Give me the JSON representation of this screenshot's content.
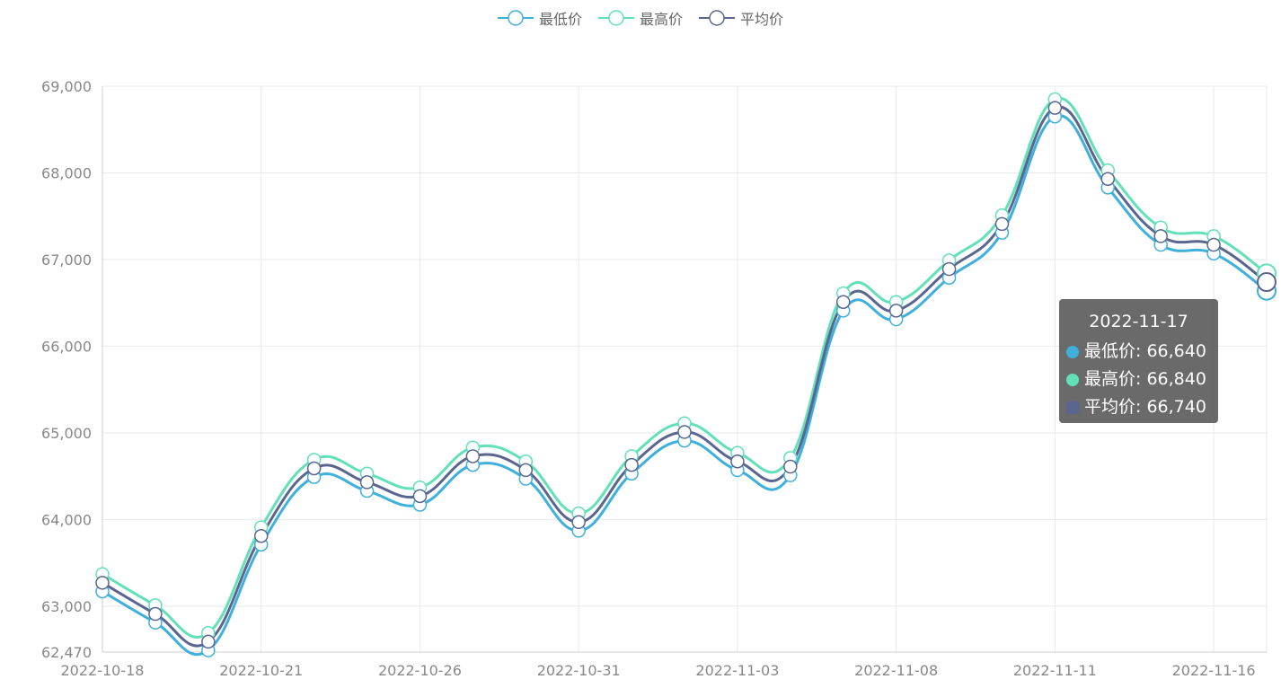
{
  "legend": [
    {
      "name": "最低价",
      "color": "#3fafdc"
    },
    {
      "name": "最高价",
      "color": "#62e0b8"
    },
    {
      "name": "平均价",
      "color": "#5b6690"
    }
  ],
  "tooltip": {
    "date": "2022-11-17",
    "rows": [
      {
        "label": "最低价: 66,640",
        "color": "#3fafdc"
      },
      {
        "label": "最高价: 66,840",
        "color": "#62e0b8"
      },
      {
        "label": "平均价: 66,740",
        "color": "#5b6690"
      }
    ]
  },
  "chart_data": {
    "type": "line",
    "x": [
      "2022-10-18",
      "2022-10-19",
      "2022-10-20",
      "2022-10-21",
      "2022-10-24",
      "2022-10-25",
      "2022-10-26",
      "2022-10-27",
      "2022-10-28",
      "2022-10-31",
      "2022-11-01",
      "2022-11-02",
      "2022-11-03",
      "2022-11-04",
      "2022-11-07",
      "2022-11-08",
      "2022-11-09",
      "2022-11-10",
      "2022-11-11",
      "2022-11-14",
      "2022-11-15",
      "2022-11-16",
      "2022-11-17"
    ],
    "x_tick_labels": [
      "2022-10-18",
      "2022-10-21",
      "2022-10-26",
      "2022-10-31",
      "2022-11-03",
      "2022-11-08",
      "2022-11-11",
      "2022-11-16"
    ],
    "series": [
      {
        "name": "最低价",
        "color": "#3fafdc",
        "values": [
          63170,
          62810,
          62490,
          63710,
          64490,
          64330,
          64170,
          64630,
          64470,
          63870,
          64530,
          64910,
          64570,
          64510,
          66410,
          66310,
          66790,
          67310,
          68650,
          67830,
          67170,
          67070,
          66640
        ]
      },
      {
        "name": "最高价",
        "color": "#62e0b8",
        "values": [
          63370,
          63010,
          62690,
          63910,
          64690,
          64530,
          64370,
          64830,
          64670,
          64070,
          64730,
          65110,
          64770,
          64710,
          66610,
          66510,
          66990,
          67510,
          68850,
          68030,
          67370,
          67270,
          66840
        ]
      },
      {
        "name": "平均价",
        "color": "#5b6690",
        "values": [
          63270,
          62910,
          62590,
          63810,
          64590,
          64430,
          64270,
          64730,
          64570,
          63970,
          64630,
          65010,
          64670,
          64610,
          66510,
          66410,
          66890,
          67410,
          68750,
          67930,
          67270,
          67170,
          66740
        ]
      }
    ],
    "ylim": [
      62470,
      69000
    ],
    "y_ticks": [
      "62,470",
      "63,000",
      "64,000",
      "65,000",
      "66,000",
      "67,000",
      "68,000",
      "69,000"
    ],
    "grid": true,
    "legend_position": "top-center"
  }
}
